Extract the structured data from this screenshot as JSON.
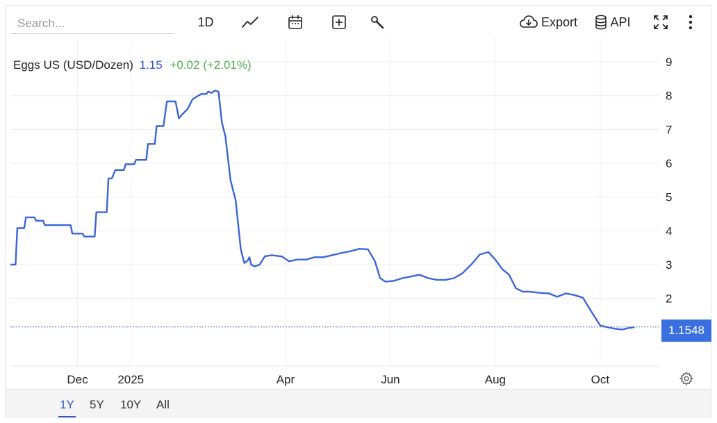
{
  "search": {
    "placeholder": "Search..."
  },
  "toolbar": {
    "interval_label": "1D",
    "export_label": "Export",
    "api_label": "API",
    "icons": [
      "line-chart-icon",
      "calendar-icon",
      "plus-square-icon",
      "wrench-icon",
      "cloud-download-icon",
      "database-icon",
      "fullscreen-icon",
      "more-vertical-icon"
    ]
  },
  "legend": {
    "name": "Eggs US (USD/Dozen)",
    "last": "1.15",
    "change": "+0.02 (+2.01%)"
  },
  "price_tag": "1.1548",
  "ranges": [
    {
      "label": "1Y",
      "active": true
    },
    {
      "label": "5Y",
      "active": false
    },
    {
      "label": "10Y",
      "active": false
    },
    {
      "label": "All",
      "active": false
    }
  ],
  "colors": {
    "line": "#3a64d8",
    "accent": "#2f55c8",
    "change_positive": "#4caf50",
    "price_tag": "#3a6fe0"
  },
  "chart_data": {
    "type": "line",
    "title": "",
    "xlabel": "",
    "ylabel": "",
    "ylim": [
      0,
      9.7
    ],
    "yticks": [
      2,
      3,
      4,
      5,
      6,
      7,
      8,
      9
    ],
    "xtick_labels": [
      {
        "label": "Dec",
        "x": "2024-12-01"
      },
      {
        "label": "2025",
        "x": "2025-01-01"
      },
      {
        "label": "Apr",
        "x": "2025-04-01"
      },
      {
        "label": "Jun",
        "x": "2025-06-01"
      },
      {
        "label": "Aug",
        "x": "2025-08-01"
      },
      {
        "label": "Oct",
        "x": "2025-10-01"
      }
    ],
    "grid": true,
    "last_value_line": 1.1548,
    "series": [
      {
        "points": [
          [
            "2024-10-23",
            3.0
          ],
          [
            "2024-10-26",
            3.0
          ],
          [
            "2024-10-27",
            4.08
          ],
          [
            "2024-10-31",
            4.08
          ],
          [
            "2024-11-01",
            4.4
          ],
          [
            "2024-11-06",
            4.4
          ],
          [
            "2024-11-07",
            4.3
          ],
          [
            "2024-11-11",
            4.3
          ],
          [
            "2024-11-12",
            4.17
          ],
          [
            "2024-11-27",
            4.17
          ],
          [
            "2024-11-28",
            3.92
          ],
          [
            "2024-12-04",
            3.92
          ],
          [
            "2024-12-05",
            3.83
          ],
          [
            "2024-12-11",
            3.83
          ],
          [
            "2024-12-12",
            4.55
          ],
          [
            "2024-12-18",
            4.55
          ],
          [
            "2024-12-19",
            5.55
          ],
          [
            "2024-12-21",
            5.55
          ],
          [
            "2024-12-23",
            5.8
          ],
          [
            "2024-12-28",
            5.8
          ],
          [
            "2024-12-29",
            5.97
          ],
          [
            "2025-01-03",
            5.97
          ],
          [
            "2025-01-04",
            6.1
          ],
          [
            "2025-01-10",
            6.1
          ],
          [
            "2025-01-11",
            6.57
          ],
          [
            "2025-01-15",
            6.57
          ],
          [
            "2025-01-16",
            7.1
          ],
          [
            "2025-01-20",
            7.1
          ],
          [
            "2025-01-22",
            7.83
          ],
          [
            "2025-01-27",
            7.83
          ],
          [
            "2025-01-29",
            7.33
          ],
          [
            "2025-01-31",
            7.45
          ],
          [
            "2025-02-03",
            7.6
          ],
          [
            "2025-02-06",
            7.9
          ],
          [
            "2025-02-11",
            8.05
          ],
          [
            "2025-02-14",
            8.05
          ],
          [
            "2025-02-15",
            8.12
          ],
          [
            "2025-02-17",
            8.08
          ],
          [
            "2025-02-19",
            8.15
          ],
          [
            "2025-02-21",
            8.12
          ],
          [
            "2025-02-23",
            7.2
          ],
          [
            "2025-02-25",
            6.8
          ],
          [
            "2025-02-28",
            5.5
          ],
          [
            "2025-03-03",
            4.9
          ],
          [
            "2025-03-06",
            3.45
          ],
          [
            "2025-03-08",
            3.05
          ],
          [
            "2025-03-10",
            3.12
          ],
          [
            "2025-03-11",
            3.22
          ],
          [
            "2025-03-12",
            3.0
          ],
          [
            "2025-03-14",
            2.95
          ],
          [
            "2025-03-17",
            3.0
          ],
          [
            "2025-03-20",
            3.25
          ],
          [
            "2025-03-24",
            3.28
          ],
          [
            "2025-03-30",
            3.24
          ],
          [
            "2025-04-03",
            3.1
          ],
          [
            "2025-04-08",
            3.15
          ],
          [
            "2025-04-13",
            3.15
          ],
          [
            "2025-04-18",
            3.22
          ],
          [
            "2025-04-23",
            3.22
          ],
          [
            "2025-04-28",
            3.28
          ],
          [
            "2025-05-04",
            3.35
          ],
          [
            "2025-05-09",
            3.4
          ],
          [
            "2025-05-14",
            3.47
          ],
          [
            "2025-05-19",
            3.45
          ],
          [
            "2025-05-23",
            3.1
          ],
          [
            "2025-05-26",
            2.6
          ],
          [
            "2025-05-29",
            2.5
          ],
          [
            "2025-06-03",
            2.52
          ],
          [
            "2025-06-08",
            2.6
          ],
          [
            "2025-06-13",
            2.65
          ],
          [
            "2025-06-18",
            2.7
          ],
          [
            "2025-06-23",
            2.6
          ],
          [
            "2025-06-28",
            2.55
          ],
          [
            "2025-07-03",
            2.55
          ],
          [
            "2025-07-08",
            2.6
          ],
          [
            "2025-07-13",
            2.75
          ],
          [
            "2025-07-18",
            3.0
          ],
          [
            "2025-07-23",
            3.3
          ],
          [
            "2025-07-28",
            3.37
          ],
          [
            "2025-08-01",
            3.15
          ],
          [
            "2025-08-05",
            2.87
          ],
          [
            "2025-08-09",
            2.7
          ],
          [
            "2025-08-13",
            2.3
          ],
          [
            "2025-08-17",
            2.2
          ],
          [
            "2025-08-21",
            2.2
          ],
          [
            "2025-08-26",
            2.17
          ],
          [
            "2025-09-01",
            2.15
          ],
          [
            "2025-09-06",
            2.05
          ],
          [
            "2025-09-11",
            2.15
          ],
          [
            "2025-09-16",
            2.1
          ],
          [
            "2025-09-21",
            2.02
          ],
          [
            "2025-09-26",
            1.6
          ],
          [
            "2025-10-01",
            1.2
          ],
          [
            "2025-10-05",
            1.15
          ],
          [
            "2025-10-10",
            1.1
          ],
          [
            "2025-10-14",
            1.08
          ],
          [
            "2025-10-17",
            1.12
          ],
          [
            "2025-10-21",
            1.15
          ]
        ]
      }
    ]
  }
}
